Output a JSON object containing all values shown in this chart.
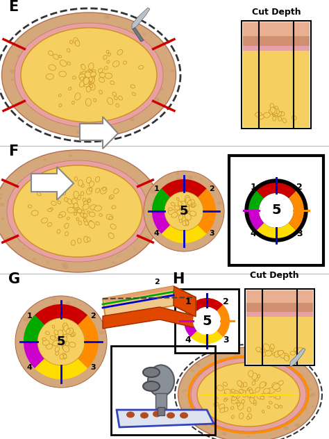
{
  "bg_color": "#ffffff",
  "skin_tan": "#d4a87a",
  "skin_dark": "#b07050",
  "dermis_color": "#e8a0a0",
  "fat_yellow": "#f5d060",
  "fat_edge": "#c89020",
  "fat_dot": "#e8b040",
  "red_line": "#cc0000",
  "blue_line": "#0000cc",
  "purple_line": "#cc00cc",
  "orange_line": "#ff8c00",
  "green_seg": "#00aa00",
  "yellow_seg": "#ffdd00",
  "orange_seg": "#ff8c00",
  "red_seg": "#cc0000",
  "purple_seg": "#cc00cc",
  "panel_E_label": "E",
  "panel_F_label": "F",
  "panel_G_label": "G",
  "panel_H_label": "H",
  "cut_depth_label": "Cut Depth",
  "center_number": "5"
}
